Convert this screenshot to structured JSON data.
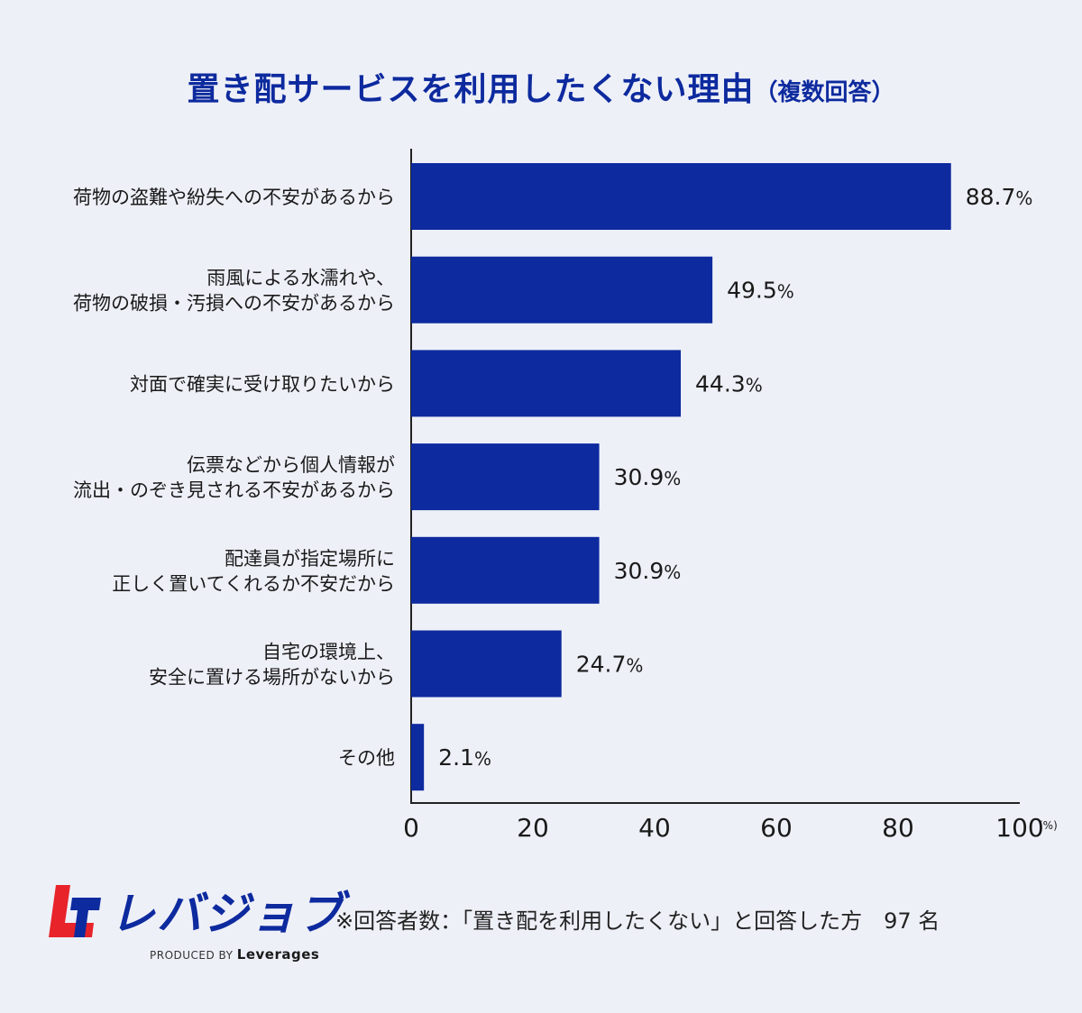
{
  "title": {
    "main": "置き配サービスを利用したくない理由",
    "sub": "（複数回答）"
  },
  "chart_data": {
    "type": "bar",
    "orientation": "horizontal",
    "categories": [
      [
        "荷物の盗難や紛失への不安があるから"
      ],
      [
        "雨風による水濡れや、",
        "荷物の破損・汚損への不安があるから"
      ],
      [
        "対面で確実に受け取りたいから"
      ],
      [
        "伝票などから個人情報が",
        "流出・のぞき見される不安があるから"
      ],
      [
        "配達員が指定場所に",
        "正しく置いてくれるか不安だから"
      ],
      [
        "自宅の環境上、",
        "安全に置ける場所がないから"
      ],
      [
        "その他"
      ]
    ],
    "values": [
      88.7,
      49.5,
      44.3,
      30.9,
      30.9,
      24.7,
      2.1
    ],
    "value_suffix": "%",
    "x_ticks": [
      "0",
      "20",
      "40",
      "60",
      "80",
      "100"
    ],
    "xlim": [
      0,
      100
    ],
    "x_unit": "(%)",
    "grid": false,
    "bar_color": "#0d2a9e"
  },
  "footer": {
    "logo_text": "レバジョブ",
    "logo_produced": "PRODUCED BY",
    "logo_brand": "Leverages",
    "note": "※回答者数：「置き配を利用したくない」と回答した方　97 名"
  },
  "colors": {
    "background": "#eef0f8",
    "accent": "#0d2a9e",
    "logo_red": "#e8232a"
  }
}
